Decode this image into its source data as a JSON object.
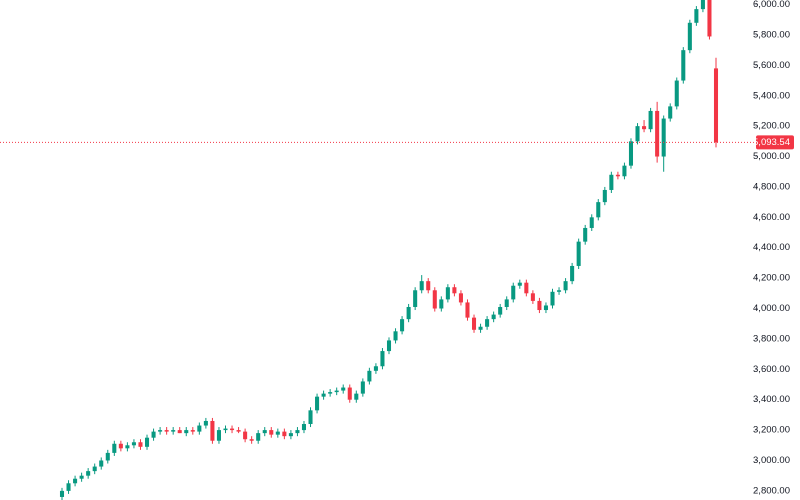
{
  "chart_data": {
    "type": "candlestick",
    "open": [
      2760,
      2800,
      2850,
      2880,
      2900,
      2930,
      2960,
      3000,
      3050,
      3110,
      3080,
      3100,
      3120,
      3090,
      3150,
      3190,
      3200,
      3190,
      3200,
      3180,
      3200,
      3190,
      3230,
      3260,
      3130,
      3200,
      3210,
      3200,
      3190,
      3140,
      3130,
      3180,
      3200,
      3170,
      3190,
      3160,
      3180,
      3200,
      3240,
      3330,
      3420,
      3440,
      3450,
      3460,
      3480,
      3400,
      3440,
      3520,
      3590,
      3620,
      3720,
      3790,
      3850,
      3930,
      4010,
      4120,
      4180,
      4120,
      4000,
      4060,
      4140,
      4100,
      4040,
      3940,
      3860,
      3880,
      3930,
      3960,
      4010,
      4060,
      4150,
      4170,
      4100,
      4050,
      3990,
      4020,
      4110,
      4120,
      4180,
      4280,
      4440,
      4530,
      4600,
      4700,
      4780,
      4880,
      4870,
      4940,
      5100,
      5200,
      5180,
      5300,
      5000,
      5250,
      5330,
      5500,
      5700,
      5880,
      5970,
      6030,
      5580
    ],
    "high": [
      2820,
      2870,
      2900,
      2920,
      2950,
      2980,
      3020,
      3070,
      3130,
      3130,
      3120,
      3140,
      3140,
      3170,
      3210,
      3220,
      3220,
      3220,
      3220,
      3220,
      3220,
      3250,
      3280,
      3280,
      3220,
      3230,
      3230,
      3220,
      3210,
      3160,
      3200,
      3220,
      3220,
      3210,
      3210,
      3200,
      3220,
      3260,
      3350,
      3440,
      3460,
      3470,
      3480,
      3500,
      3500,
      3460,
      3540,
      3610,
      3640,
      3740,
      3810,
      3870,
      3950,
      4030,
      4140,
      4220,
      4200,
      4140,
      4080,
      4160,
      4160,
      4120,
      4060,
      3960,
      3900,
      3950,
      3980,
      4030,
      4080,
      4170,
      4190,
      4190,
      4120,
      4070,
      4040,
      4130,
      4140,
      4200,
      4300,
      4460,
      4550,
      4620,
      4720,
      4800,
      4900,
      4900,
      4960,
      5120,
      5220,
      5240,
      5320,
      5360,
      5270,
      5350,
      5520,
      5720,
      5900,
      5990,
      6070,
      6050,
      5650
    ],
    "low": [
      2740,
      2780,
      2830,
      2860,
      2880,
      2910,
      2940,
      2980,
      3030,
      3060,
      3060,
      3080,
      3070,
      3070,
      3130,
      3170,
      3170,
      3170,
      3180,
      3160,
      3170,
      3170,
      3210,
      3110,
      3110,
      3180,
      3180,
      3180,
      3120,
      3110,
      3110,
      3160,
      3150,
      3150,
      3140,
      3140,
      3160,
      3180,
      3220,
      3310,
      3400,
      3420,
      3430,
      3440,
      3380,
      3380,
      3420,
      3500,
      3570,
      3600,
      3700,
      3770,
      3830,
      3910,
      3990,
      4100,
      4100,
      3980,
      3980,
      4040,
      4080,
      4020,
      3920,
      3840,
      3840,
      3860,
      3910,
      3940,
      3990,
      4040,
      4130,
      4080,
      4030,
      3970,
      3970,
      4000,
      4090,
      4100,
      4160,
      4260,
      4420,
      4510,
      4580,
      4680,
      4760,
      4850,
      4850,
      4920,
      5080,
      5160,
      5160,
      4960,
      4900,
      5230,
      5310,
      5480,
      5680,
      5860,
      5950,
      5770,
      5060
    ],
    "close": [
      2800,
      2850,
      2880,
      2900,
      2930,
      2960,
      3000,
      3050,
      3110,
      3080,
      3100,
      3120,
      3090,
      3150,
      3190,
      3200,
      3190,
      3200,
      3180,
      3200,
      3190,
      3230,
      3260,
      3130,
      3200,
      3210,
      3200,
      3190,
      3140,
      3130,
      3180,
      3200,
      3170,
      3190,
      3160,
      3180,
      3200,
      3240,
      3330,
      3420,
      3440,
      3450,
      3460,
      3480,
      3400,
      3440,
      3520,
      3590,
      3620,
      3720,
      3790,
      3850,
      3930,
      4010,
      4120,
      4180,
      4120,
      4000,
      4060,
      4140,
      4100,
      4040,
      3940,
      3860,
      3880,
      3930,
      3960,
      4010,
      4060,
      4150,
      4170,
      4100,
      4050,
      3990,
      4020,
      4110,
      4120,
      4180,
      4280,
      4440,
      4530,
      4600,
      4700,
      4780,
      4880,
      4870,
      4940,
      5100,
      5200,
      5180,
      5300,
      5000,
      5250,
      5330,
      5500,
      5700,
      5880,
      5970,
      6050,
      5790,
      5093.54
    ],
    "up_color": "#089981",
    "down_color": "#f23645",
    "ylim": [
      2740,
      6030
    ],
    "yticks": [
      {
        "value": 2800,
        "label": "2,800.00"
      },
      {
        "value": 3000,
        "label": "3,000.00"
      },
      {
        "value": 3200,
        "label": "3,200.00"
      },
      {
        "value": 3400,
        "label": "3,400.00"
      },
      {
        "value": 3600,
        "label": "3,600.00"
      },
      {
        "value": 3800,
        "label": "3,800.00"
      },
      {
        "value": 4000,
        "label": "4,000.00"
      },
      {
        "value": 4200,
        "label": "4,200.00"
      },
      {
        "value": 4400,
        "label": "4,400.00"
      },
      {
        "value": 4600,
        "label": "4,600.00"
      },
      {
        "value": 4800,
        "label": "4,800.00"
      },
      {
        "value": 5000,
        "label": "5,000.00"
      },
      {
        "value": 5200,
        "label": "5,200.00"
      },
      {
        "value": 5400,
        "label": "5,400.00"
      },
      {
        "value": 5600,
        "label": "5,600.00"
      },
      {
        "value": 5800,
        "label": "5,800.00"
      },
      {
        "value": 6000,
        "label": "6,000.00"
      }
    ],
    "price_line": {
      "value": 5093.54,
      "label": "5,093.54"
    },
    "grid": false
  }
}
